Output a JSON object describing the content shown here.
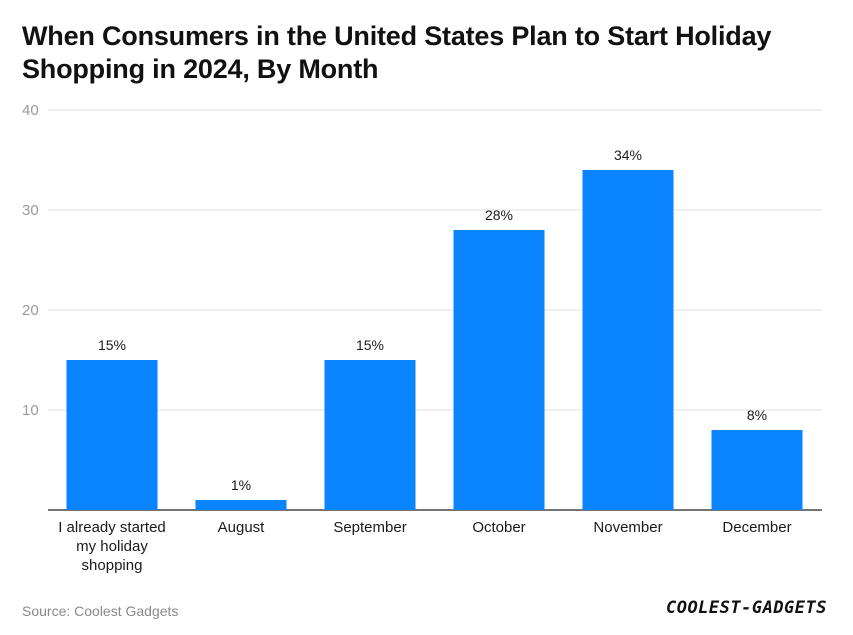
{
  "title": "When Consumers in the United States Plan to Start Holiday Shopping in 2024, By Month",
  "source": "Source: Coolest Gadgets",
  "logo_text": "COOLEST-GADGETS",
  "colors": {
    "bar": "#0a84ff",
    "grid": "#e2e2e2",
    "axis": "#222222"
  },
  "chart_data": {
    "type": "bar",
    "title": "When Consumers in the United States Plan to Start Holiday Shopping in 2024, By Month",
    "categories": [
      [
        "I already started",
        "my holiday",
        "shopping"
      ],
      [
        "August"
      ],
      [
        "September"
      ],
      [
        "October"
      ],
      [
        "November"
      ],
      [
        "December"
      ]
    ],
    "values": [
      15,
      1,
      15,
      28,
      34,
      8
    ],
    "data_labels": [
      "15%",
      "1%",
      "15%",
      "28%",
      "34%",
      "8%"
    ],
    "yticks": [
      10,
      20,
      30,
      40
    ],
    "ylim": [
      0,
      40
    ],
    "xlabel": "",
    "ylabel": "",
    "grid": true,
    "legend": "none"
  }
}
